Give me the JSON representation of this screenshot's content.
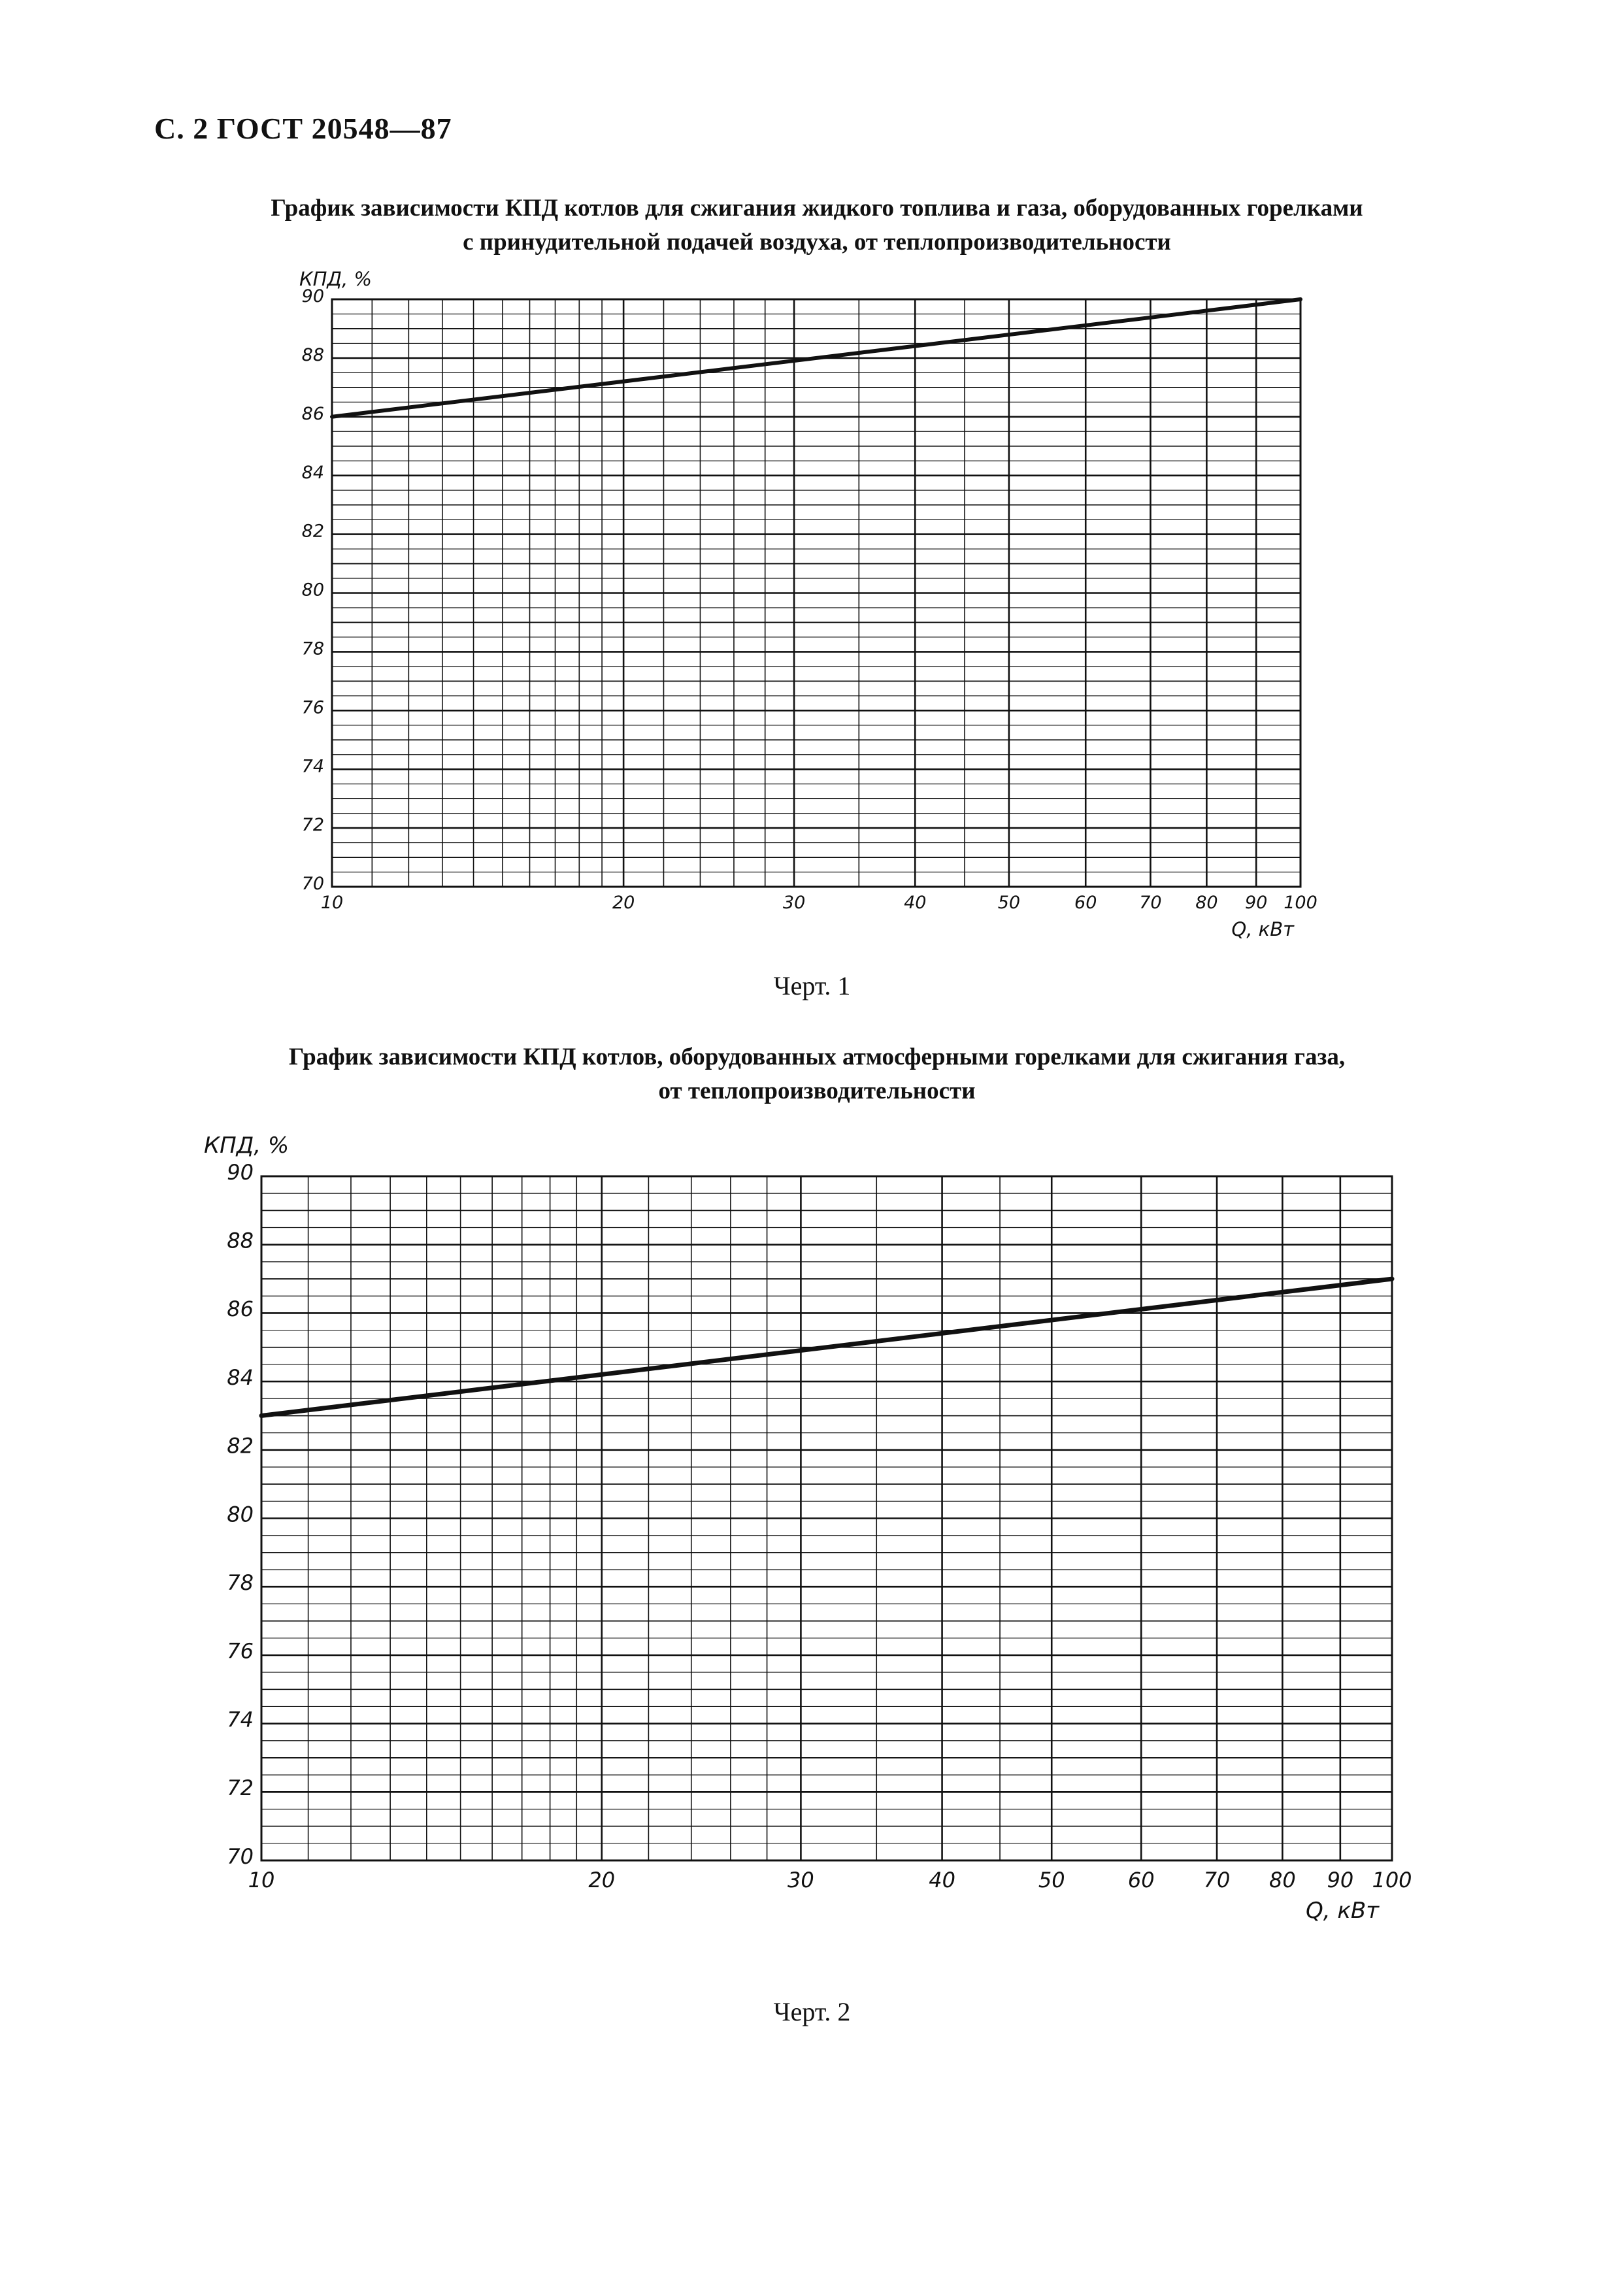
{
  "header": "С. 2 ГОСТ 20548—87",
  "charts": [
    {
      "title_line1": "График зависимости КПД котлов для сжигания жидкого топлива и газа, оборудованных горелками",
      "title_line2": "с принудительной подачей воздуха, от теплопроизводительности",
      "caption": "Черт. 1"
    },
    {
      "title_line1": "График зависимости КПД котлов, оборудованных атмосферными горелками для сжигания газа,",
      "title_line2": "от теплопроизводительности",
      "caption": "Черт. 2"
    }
  ],
  "colors": {
    "ink": "#111111",
    "paper": "#ffffff"
  },
  "chart_data": [
    {
      "type": "line",
      "xscale": "log",
      "xlabel": "Q, кВт",
      "ylabel": "КПД, %",
      "xlim": [
        10,
        100
      ],
      "ylim": [
        70,
        90
      ],
      "xticks": [
        10,
        20,
        30,
        40,
        50,
        60,
        70,
        80,
        90,
        100
      ],
      "xtick_labels": [
        "10",
        "20",
        "30",
        "40",
        "50",
        "60",
        "70",
        "80",
        "90",
        "100"
      ],
      "yticks": [
        70,
        72,
        74,
        76,
        78,
        80,
        82,
        84,
        86,
        88,
        90
      ],
      "ytick_labels": [
        "70",
        "72",
        "74",
        "76",
        "78",
        "80",
        "82",
        "84",
        "86",
        "88",
        "90"
      ],
      "grid": true,
      "series": [
        {
          "x": [
            10,
            100
          ],
          "y": [
            86,
            90
          ]
        }
      ]
    },
    {
      "type": "line",
      "xscale": "log",
      "xlabel": "Q, кВт",
      "ylabel": "КПД, %",
      "xlim": [
        10,
        100
      ],
      "ylim": [
        70,
        90
      ],
      "xticks": [
        10,
        20,
        30,
        40,
        50,
        60,
        70,
        80,
        90,
        100
      ],
      "xtick_labels": [
        "10",
        "20",
        "30",
        "40",
        "50",
        "60",
        "70",
        "80",
        "90",
        "100"
      ],
      "yticks": [
        70,
        72,
        74,
        76,
        78,
        80,
        82,
        84,
        86,
        88,
        90
      ],
      "ytick_labels": [
        "70",
        "72",
        "74",
        "76",
        "78",
        "80",
        "82",
        "84",
        "86",
        "88",
        "90"
      ],
      "grid": true,
      "series": [
        {
          "x": [
            10,
            100
          ],
          "y": [
            83,
            87
          ]
        }
      ]
    }
  ]
}
